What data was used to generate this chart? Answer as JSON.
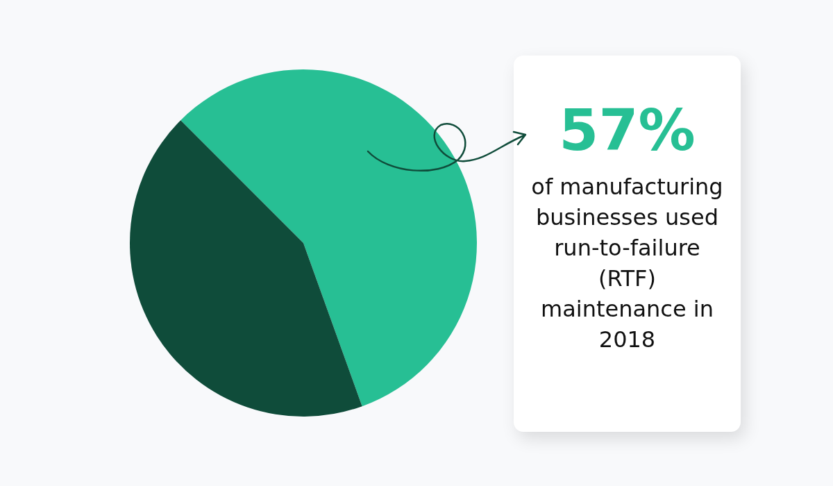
{
  "chart_data": {
    "type": "pie",
    "categories": [
      null,
      null
    ],
    "values": [
      57,
      43
    ],
    "colors": [
      "#27bf94",
      "#0f4c3a"
    ],
    "annotations": [
      "57%",
      "of manufacturing businesses used run-to-failure (RTF) maintenance in 2018"
    ]
  }
}
